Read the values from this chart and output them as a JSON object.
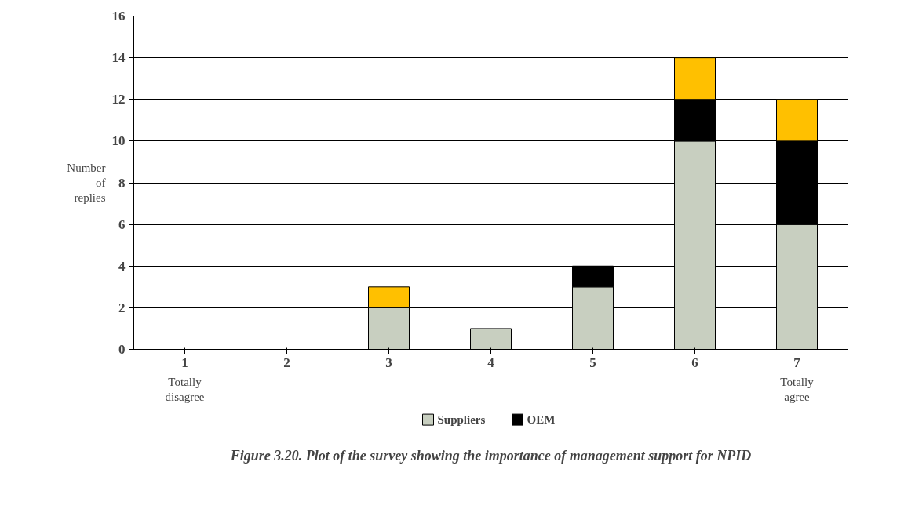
{
  "chart_data": {
    "type": "bar",
    "stacked": true,
    "categories": [
      "1",
      "2",
      "3",
      "4",
      "5",
      "6",
      "7"
    ],
    "series": [
      {
        "name": "Suppliers",
        "color": "#c8cfc0",
        "values": [
          0,
          0,
          2,
          1,
          3,
          10,
          6
        ]
      },
      {
        "name": "OEM",
        "color": "#000000",
        "values": [
          0,
          0,
          0,
          0,
          1,
          2,
          4
        ]
      },
      {
        "color": "#ffc000",
        "values": [
          0,
          0,
          1,
          0,
          0,
          2,
          2
        ]
      }
    ],
    "ylabel": "Number of replies",
    "ylim": [
      0,
      16
    ],
    "yticks": [
      0,
      2,
      4,
      6,
      8,
      10,
      12,
      14,
      16
    ],
    "grid": "y",
    "legend": "bottom",
    "annotations": [
      "Totally disagree",
      "Totally agree",
      "Figure 3.20. Plot of the survey showing the importance of management support for NPID"
    ]
  }
}
